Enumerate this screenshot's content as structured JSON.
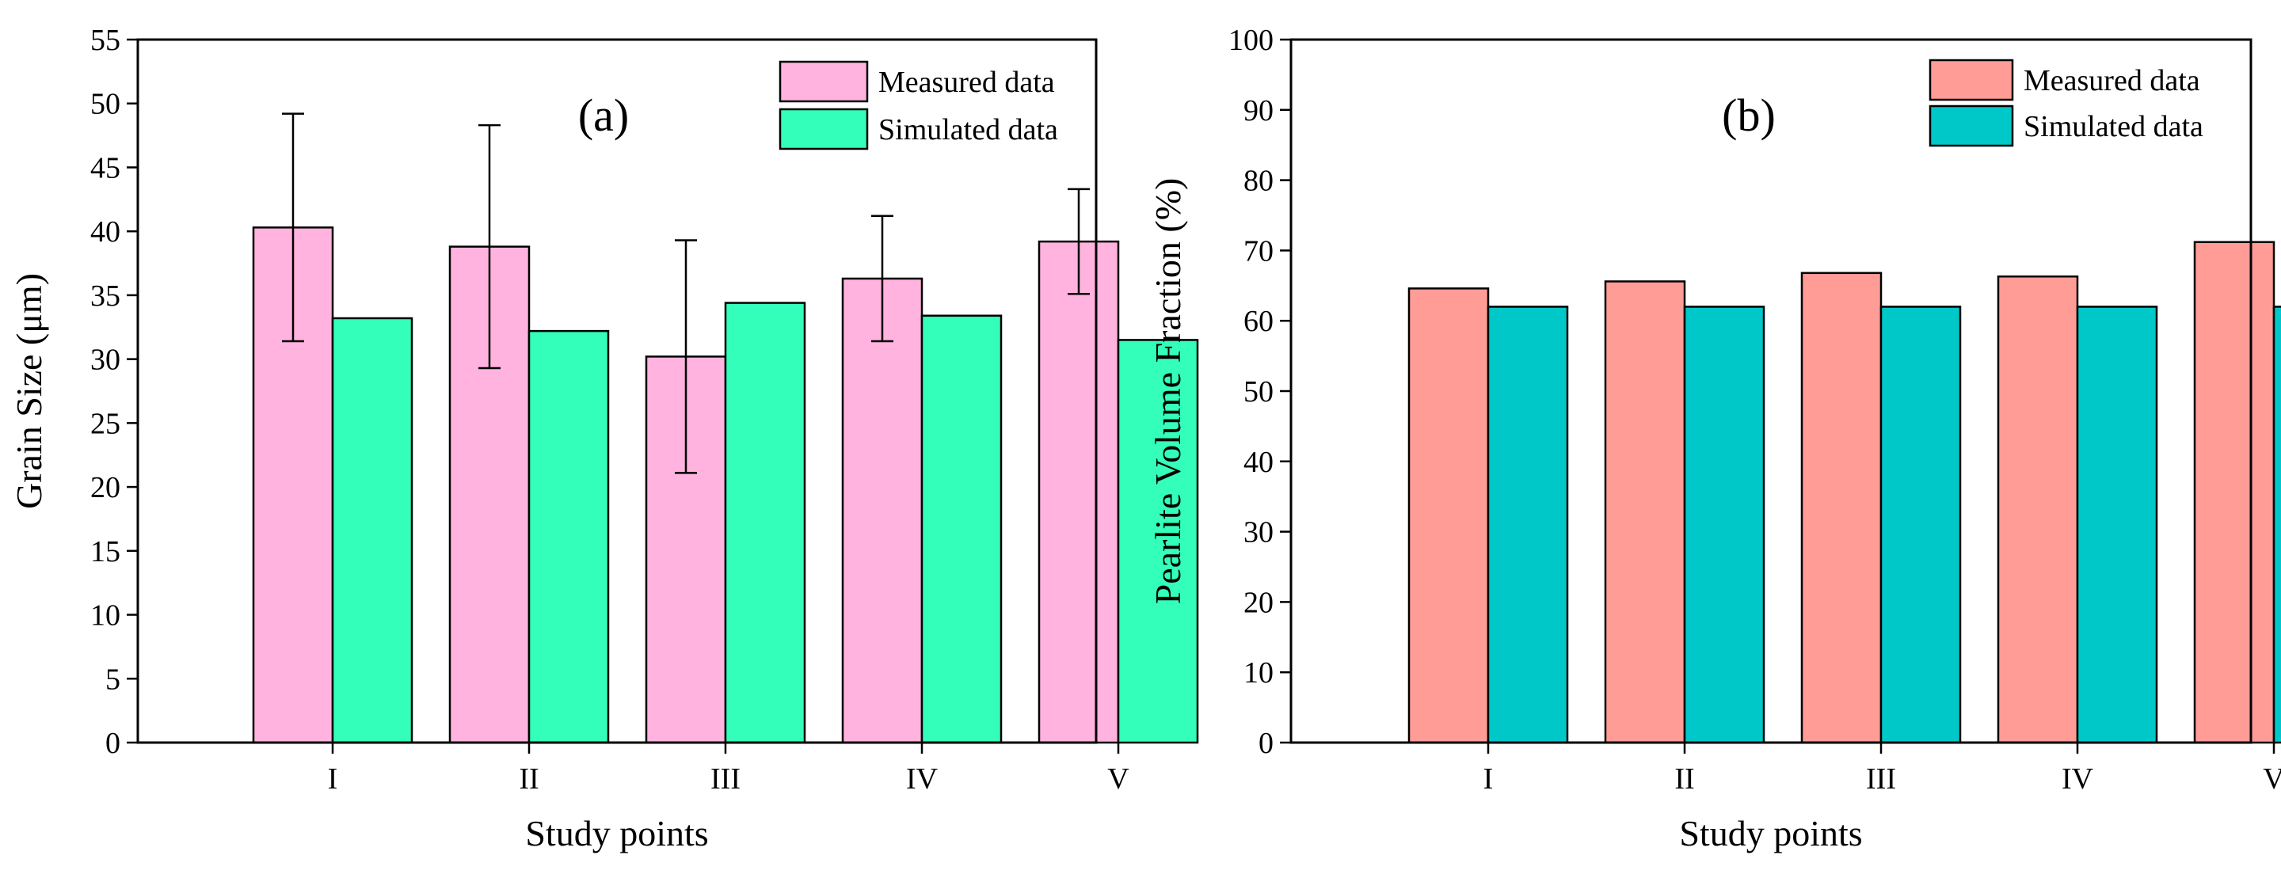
{
  "chart_data": [
    {
      "type": "bar",
      "panel_label": "(a)",
      "categories": [
        "I",
        "II",
        "III",
        "IV",
        "V"
      ],
      "series": [
        {
          "name": "Measured data",
          "values": [
            40.3,
            38.8,
            30.2,
            36.3,
            39.2
          ],
          "errors": [
            8.9,
            9.5,
            9.1,
            4.9,
            4.1
          ],
          "color": "#FFB3DE"
        },
        {
          "name": "Simulated data",
          "values": [
            33.2,
            32.2,
            34.4,
            33.4,
            31.5
          ],
          "color": "#33FFBB"
        }
      ],
      "xlabel": "Study points",
      "ylabel": "Grain Size (μm)",
      "ylim": [
        0,
        55
      ],
      "yticks": [
        0,
        5,
        10,
        15,
        20,
        25,
        30,
        35,
        40,
        45,
        50,
        55
      ],
      "ytick_labels": [
        "0",
        "5",
        "10",
        "15",
        "20",
        "25",
        "30",
        "35",
        "40",
        "45",
        "50",
        "55"
      ],
      "legend_position": "top-right",
      "grid": false
    },
    {
      "type": "bar",
      "panel_label": "(b)",
      "categories": [
        "I",
        "II",
        "III",
        "IV",
        "V"
      ],
      "series": [
        {
          "name": "Measured data",
          "values": [
            64.6,
            65.6,
            66.8,
            66.3,
            71.2
          ],
          "color": "#FF9C96"
        },
        {
          "name": "Simulated data",
          "values": [
            62.0,
            62.0,
            62.0,
            62.0,
            62.0
          ],
          "color": "#00C8C8"
        }
      ],
      "xlabel": "Study points",
      "ylabel": "Pearlite Volume Fraction (%)",
      "ylim": [
        0,
        100
      ],
      "yticks": [
        0,
        10,
        20,
        30,
        40,
        50,
        60,
        70,
        80,
        90,
        100
      ],
      "ytick_labels": [
        "0",
        "10",
        "20",
        "30",
        "40",
        "50",
        "60",
        "70",
        "80",
        "90",
        "100"
      ],
      "legend_position": "top-right",
      "grid": false
    }
  ]
}
